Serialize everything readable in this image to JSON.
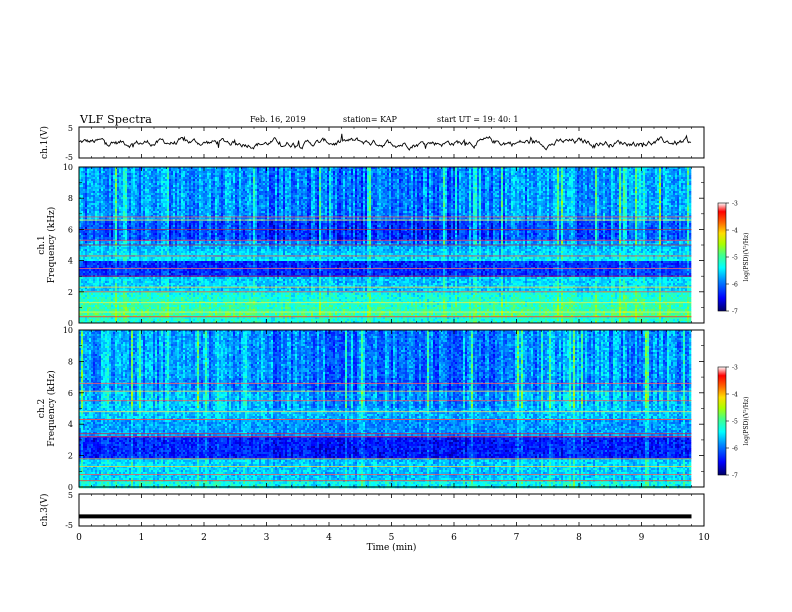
{
  "header": {
    "title": "VLF Spectra",
    "date": "Feb. 16, 2019",
    "station": "station= KAP",
    "start": "start UT = 19: 40: 1"
  },
  "colorbar": {
    "label": "log(PSD)(V²/Hz)",
    "ticks": [
      "-3",
      "-4",
      "-5",
      "-6",
      "-7"
    ],
    "colormap": [
      "#00007f",
      "#0000ff",
      "#0066ff",
      "#00ccff",
      "#33ffcc",
      "#66ff66",
      "#ccff33",
      "#ffcc00",
      "#ff6600",
      "#ff0000",
      "#c00000",
      "#ffffff"
    ]
  },
  "chart_data": [
    {
      "type": "line",
      "id": "ch1-waveform",
      "ylabel": "ch.1(V)",
      "ylim": [
        -5,
        5
      ],
      "yticks": [
        "5",
        "-5"
      ],
      "xlim": [
        0,
        10
      ],
      "series": [
        {
          "color": "#000000"
        }
      ],
      "note": "noisy waveform, amplitude roughly within -2.5 to 2.5 V"
    },
    {
      "type": "heatmap",
      "id": "ch1-spectrogram",
      "ylabel": "ch.1\nFrequency (kHz)",
      "ylim": [
        0,
        10
      ],
      "yticks": [
        "0",
        "2",
        "4",
        "6",
        "8",
        "10"
      ],
      "xlim": [
        0,
        10
      ],
      "data_end_min": 9.8,
      "value_range": [
        -7,
        -3
      ]
    },
    {
      "type": "heatmap",
      "id": "ch2-spectrogram",
      "ylabel": "ch.2\nFrequency (kHz)",
      "ylim": [
        0,
        10
      ],
      "yticks": [
        "0",
        "2",
        "4",
        "6",
        "8",
        "10"
      ],
      "xlim": [
        0,
        10
      ],
      "data_end_min": 9.8,
      "value_range": [
        -7,
        -3
      ]
    },
    {
      "type": "line",
      "id": "ch3-waveform",
      "ylabel": "ch.3(V)",
      "ylim": [
        -5,
        5
      ],
      "yticks": [
        "5",
        "-5"
      ],
      "xlim": [
        0,
        10
      ],
      "series": [
        {
          "color": "#000000",
          "constant_value": -2
        }
      ]
    }
  ],
  "xaxis": {
    "label": "Time (min)",
    "ticks": [
      "0",
      "1",
      "2",
      "3",
      "4",
      "5",
      "6",
      "7",
      "8",
      "9",
      "10"
    ]
  }
}
